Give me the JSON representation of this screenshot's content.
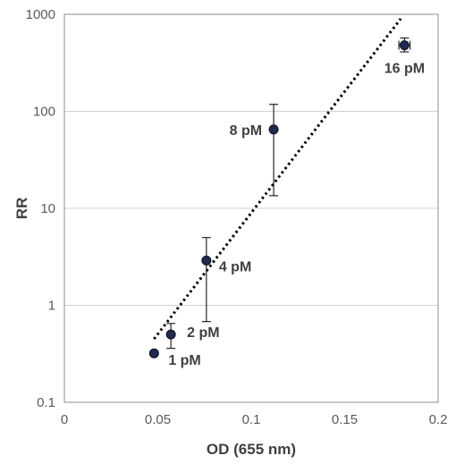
{
  "chart_data": {
    "type": "scatter",
    "title": "",
    "xlabel": "OD (655 nm)",
    "ylabel": "RR",
    "xlim": [
      0,
      0.2
    ],
    "ylim": [
      0.1,
      1000
    ],
    "yscale": "log",
    "grid": "horizontal major lines",
    "x_ticks": [
      "0",
      "0.05",
      "0.1",
      "0.15",
      "0.2"
    ],
    "y_ticks": [
      "0.1",
      "1",
      "10",
      "100",
      "1000"
    ],
    "marker_color": "#1f2a4d",
    "trendline": {
      "style": "dotted",
      "kind": "exponential",
      "x_range": [
        0.048,
        0.18
      ],
      "y_range": [
        0.45,
        900
      ]
    },
    "points": [
      {
        "label": "1 pM",
        "x": 0.048,
        "y": 0.32,
        "y_low": 0.32,
        "y_high": 0.32
      },
      {
        "label": "2 pM",
        "x": 0.057,
        "y": 0.5,
        "y_low": 0.36,
        "y_high": 0.65
      },
      {
        "label": "4 pM",
        "x": 0.076,
        "y": 2.9,
        "y_low": 0.68,
        "y_high": 5.0
      },
      {
        "label": "8 pM",
        "x": 0.112,
        "y": 65,
        "y_low": 13.5,
        "y_high": 118
      },
      {
        "label": "16 pM",
        "x": 0.182,
        "y": 480,
        "y_low": 410,
        "y_high": 570,
        "x_err": 0.003
      }
    ]
  }
}
